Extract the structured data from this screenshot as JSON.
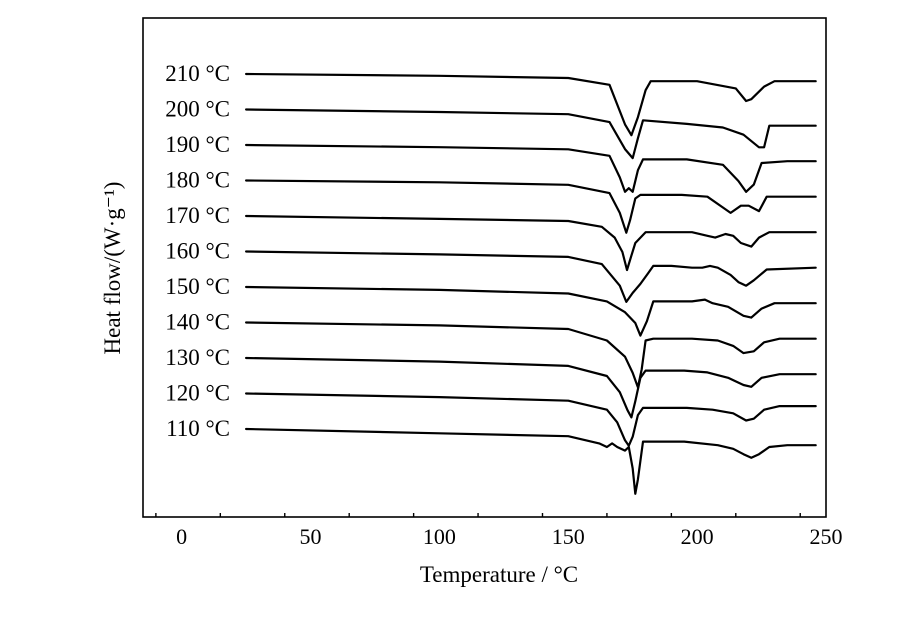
{
  "chart_data": {
    "type": "line",
    "title": "",
    "xlabel": "Temperature / °C",
    "ylabel": "Heat flow/(W·g⁻¹)",
    "xlim": [
      -15,
      250
    ],
    "xticks": [
      0,
      50,
      100,
      150,
      200,
      250
    ],
    "x_major_tick_labels": [
      "0",
      "50",
      "100",
      "150",
      "200",
      "250"
    ],
    "y_scale": "arbitrary (curves vertically offset)",
    "grid": false,
    "legend": "none; curves labelled at left",
    "line_color": "#000000",
    "series": [
      {
        "name": "210 °C",
        "points": [
          [
            25,
            0
          ],
          [
            100,
            -0.05
          ],
          [
            150,
            -0.11
          ],
          [
            166,
            -0.3
          ],
          [
            172,
            -1.4
          ],
          [
            174.5,
            -1.7
          ],
          [
            177,
            -1.2
          ],
          [
            180,
            -0.45
          ],
          [
            182,
            -0.2
          ],
          [
            200,
            -0.2
          ],
          [
            215,
            -0.4
          ],
          [
            219,
            -0.75
          ],
          [
            221,
            -0.7
          ],
          [
            226,
            -0.35
          ],
          [
            230,
            -0.2
          ],
          [
            246,
            -0.2
          ]
        ]
      },
      {
        "name": "200 °C",
        "points": [
          [
            25,
            0
          ],
          [
            100,
            -0.07
          ],
          [
            150,
            -0.13
          ],
          [
            166,
            -0.35
          ],
          [
            172,
            -1.1
          ],
          [
            175,
            -1.35
          ],
          [
            177,
            -0.8
          ],
          [
            179,
            -0.3
          ],
          [
            196,
            -0.4
          ],
          [
            210,
            -0.5
          ],
          [
            218,
            -0.7
          ],
          [
            224,
            -1.05
          ],
          [
            226,
            -1.05
          ],
          [
            228,
            -0.45
          ],
          [
            235,
            -0.45
          ],
          [
            246,
            -0.45
          ]
        ]
      },
      {
        "name": "190 °C",
        "points": [
          [
            25,
            0
          ],
          [
            100,
            -0.06
          ],
          [
            150,
            -0.12
          ],
          [
            166,
            -0.3
          ],
          [
            170,
            -0.9
          ],
          [
            172,
            -1.3
          ],
          [
            173.5,
            -1.2
          ],
          [
            175,
            -1.3
          ],
          [
            177,
            -0.7
          ],
          [
            179,
            -0.4
          ],
          [
            196,
            -0.4
          ],
          [
            210,
            -0.55
          ],
          [
            216,
            -1.0
          ],
          [
            219,
            -1.3
          ],
          [
            222,
            -1.1
          ],
          [
            225,
            -0.5
          ],
          [
            235,
            -0.45
          ],
          [
            246,
            -0.45
          ]
        ]
      },
      {
        "name": "180 °C",
        "points": [
          [
            25,
            0
          ],
          [
            100,
            -0.05
          ],
          [
            150,
            -0.12
          ],
          [
            166,
            -0.35
          ],
          [
            170,
            -0.9
          ],
          [
            172.5,
            -1.45
          ],
          [
            174,
            -1.1
          ],
          [
            176,
            -0.5
          ],
          [
            178,
            -0.4
          ],
          [
            194,
            -0.4
          ],
          [
            204,
            -0.45
          ],
          [
            210,
            -0.75
          ],
          [
            213,
            -0.9
          ],
          [
            217,
            -0.7
          ],
          [
            220,
            -0.7
          ],
          [
            224,
            -0.85
          ],
          [
            227,
            -0.45
          ],
          [
            235,
            -0.45
          ],
          [
            246,
            -0.45
          ]
        ]
      },
      {
        "name": "170 °C",
        "points": [
          [
            25,
            0
          ],
          [
            100,
            -0.08
          ],
          [
            150,
            -0.14
          ],
          [
            163,
            -0.3
          ],
          [
            168,
            -0.6
          ],
          [
            171,
            -1.0
          ],
          [
            172.8,
            -1.5
          ],
          [
            174.5,
            -1.1
          ],
          [
            176,
            -0.75
          ],
          [
            180,
            -0.45
          ],
          [
            186,
            -0.45
          ],
          [
            198,
            -0.45
          ],
          [
            204,
            -0.55
          ],
          [
            207,
            -0.6
          ],
          [
            211,
            -0.5
          ],
          [
            214,
            -0.55
          ],
          [
            217,
            -0.75
          ],
          [
            221,
            -0.85
          ],
          [
            224,
            -0.6
          ],
          [
            228,
            -0.45
          ],
          [
            246,
            -0.45
          ]
        ]
      },
      {
        "name": "160 °C",
        "points": [
          [
            25,
            0
          ],
          [
            100,
            -0.08
          ],
          [
            150,
            -0.15
          ],
          [
            163,
            -0.35
          ],
          [
            170,
            -0.95
          ],
          [
            172.5,
            -1.4
          ],
          [
            175,
            -1.15
          ],
          [
            178,
            -0.9
          ],
          [
            181,
            -0.6
          ],
          [
            183,
            -0.4
          ],
          [
            190,
            -0.4
          ],
          [
            198,
            -0.45
          ],
          [
            202,
            -0.45
          ],
          [
            205,
            -0.4
          ],
          [
            208,
            -0.45
          ],
          [
            213,
            -0.65
          ],
          [
            216,
            -0.85
          ],
          [
            219,
            -0.95
          ],
          [
            222,
            -0.8
          ],
          [
            227,
            -0.5
          ],
          [
            246,
            -0.45
          ]
        ]
      },
      {
        "name": "150 °C",
        "points": [
          [
            25,
            0
          ],
          [
            100,
            -0.08
          ],
          [
            150,
            -0.18
          ],
          [
            165,
            -0.4
          ],
          [
            172,
            -0.7
          ],
          [
            176,
            -1.0
          ],
          [
            178,
            -1.35
          ],
          [
            180.5,
            -0.95
          ],
          [
            183,
            -0.4
          ],
          [
            190,
            -0.4
          ],
          [
            198,
            -0.4
          ],
          [
            203,
            -0.35
          ],
          [
            206,
            -0.45
          ],
          [
            212,
            -0.55
          ],
          [
            218,
            -0.8
          ],
          [
            221,
            -0.85
          ],
          [
            225,
            -0.6
          ],
          [
            230,
            -0.45
          ],
          [
            246,
            -0.45
          ]
        ]
      },
      {
        "name": "140 °C",
        "points": [
          [
            25,
            0
          ],
          [
            100,
            -0.08
          ],
          [
            150,
            -0.18
          ],
          [
            165,
            -0.5
          ],
          [
            172,
            -0.95
          ],
          [
            175,
            -1.4
          ],
          [
            177,
            -1.8
          ],
          [
            178.5,
            -1.3
          ],
          [
            180,
            -0.5
          ],
          [
            183,
            -0.45
          ],
          [
            198,
            -0.45
          ],
          [
            208,
            -0.5
          ],
          [
            214,
            -0.65
          ],
          [
            218,
            -0.85
          ],
          [
            222,
            -0.8
          ],
          [
            226,
            -0.55
          ],
          [
            232,
            -0.45
          ],
          [
            246,
            -0.45
          ]
        ]
      },
      {
        "name": "130 °C",
        "points": [
          [
            25,
            0
          ],
          [
            100,
            -0.1
          ],
          [
            150,
            -0.22
          ],
          [
            165,
            -0.5
          ],
          [
            170,
            -0.95
          ],
          [
            173,
            -1.45
          ],
          [
            174.5,
            -1.65
          ],
          [
            176,
            -1.2
          ],
          [
            178,
            -0.55
          ],
          [
            180,
            -0.35
          ],
          [
            195,
            -0.35
          ],
          [
            204,
            -0.4
          ],
          [
            212,
            -0.55
          ],
          [
            218,
            -0.75
          ],
          [
            221,
            -0.8
          ],
          [
            225,
            -0.55
          ],
          [
            232,
            -0.45
          ],
          [
            246,
            -0.45
          ]
        ]
      },
      {
        "name": "120 °C",
        "points": [
          [
            25,
            0
          ],
          [
            100,
            -0.1
          ],
          [
            150,
            -0.2
          ],
          [
            165,
            -0.45
          ],
          [
            169,
            -0.8
          ],
          [
            172,
            -1.3
          ],
          [
            173.5,
            -1.45
          ],
          [
            175,
            -1.2
          ],
          [
            177,
            -0.6
          ],
          [
            179,
            -0.4
          ],
          [
            196,
            -0.4
          ],
          [
            206,
            -0.45
          ],
          [
            214,
            -0.55
          ],
          [
            219,
            -0.75
          ],
          [
            222,
            -0.7
          ],
          [
            226,
            -0.45
          ],
          [
            232,
            -0.35
          ],
          [
            246,
            -0.35
          ]
        ]
      },
      {
        "name": "110 °C",
        "points": [
          [
            25,
            0
          ],
          [
            100,
            -0.12
          ],
          [
            150,
            -0.2
          ],
          [
            162,
            -0.4
          ],
          [
            165,
            -0.5
          ],
          [
            167,
            -0.4
          ],
          [
            169,
            -0.5
          ],
          [
            172,
            -0.6
          ],
          [
            173.5,
            -0.5
          ],
          [
            175,
            -1.1
          ],
          [
            176,
            -1.8
          ],
          [
            177,
            -1.4
          ],
          [
            179,
            -0.35
          ],
          [
            195,
            -0.35
          ],
          [
            208,
            -0.45
          ],
          [
            214,
            -0.55
          ],
          [
            218,
            -0.7
          ],
          [
            221,
            -0.8
          ],
          [
            224,
            -0.7
          ],
          [
            228,
            -0.5
          ],
          [
            235,
            -0.45
          ],
          [
            246,
            -0.45
          ]
        ]
      }
    ]
  }
}
